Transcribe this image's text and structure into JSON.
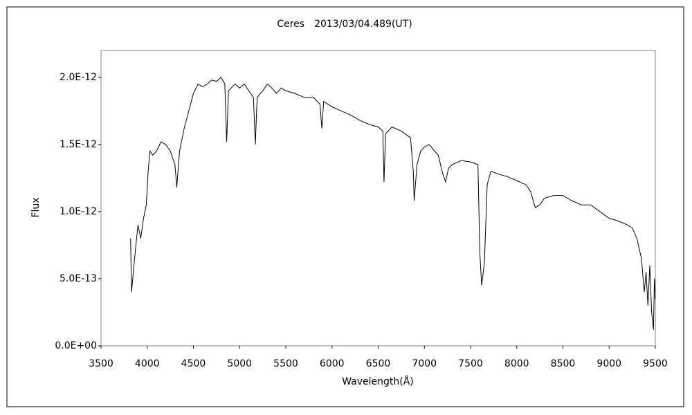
{
  "chart_data": {
    "type": "line",
    "title": "Ceres　2013/03/04.489(UT)",
    "x_label": "Wavelength(Å)",
    "y_label": "Flux",
    "xlim": [
      3500,
      9500
    ],
    "xticks": [
      3500,
      4000,
      4500,
      5000,
      5500,
      6000,
      6500,
      7000,
      7500,
      8000,
      8500,
      9000,
      9500
    ],
    "ylim": [
      0,
      2.2e-12
    ],
    "yticks": [
      {
        "value": 0,
        "label": "0.0E+00"
      },
      {
        "value": 5e-13,
        "label": "5.0E-13"
      },
      {
        "value": 1e-12,
        "label": "1.0E-12"
      },
      {
        "value": 1.5e-12,
        "label": "1.5E-12"
      },
      {
        "value": 2e-12,
        "label": "2.0E-12"
      }
    ],
    "grid": false,
    "series": [
      {
        "color": "#000000",
        "x": [
          3820,
          3830,
          3850,
          3870,
          3900,
          3930,
          3960,
          3990,
          4010,
          4030,
          4060,
          4100,
          4150,
          4200,
          4250,
          4300,
          4320,
          4350,
          4400,
          4450,
          4500,
          4550,
          4600,
          4650,
          4700,
          4750,
          4800,
          4840,
          4860,
          4880,
          4950,
          5000,
          5050,
          5100,
          5150,
          5170,
          5190,
          5250,
          5300,
          5350,
          5400,
          5450,
          5500,
          5600,
          5700,
          5800,
          5870,
          5890,
          5910,
          6000,
          6100,
          6200,
          6300,
          6400,
          6500,
          6550,
          6563,
          6580,
          6650,
          6750,
          6850,
          6880,
          6890,
          6920,
          6960,
          7000,
          7050,
          7100,
          7150,
          7200,
          7230,
          7260,
          7300,
          7400,
          7500,
          7580,
          7600,
          7620,
          7650,
          7680,
          7720,
          7800,
          7900,
          8000,
          8100,
          8150,
          8200,
          8250,
          8300,
          8400,
          8500,
          8600,
          8700,
          8800,
          8900,
          9000,
          9100,
          9200,
          9250,
          9300,
          9350,
          9380,
          9400,
          9420,
          9440,
          9460,
          9480,
          9490,
          9500
        ],
        "values": [
          8e-13,
          4e-13,
          5.5e-13,
          7e-13,
          9e-13,
          8e-13,
          9.5e-13,
          1.05e-12,
          1.3e-12,
          1.45e-12,
          1.42e-12,
          1.45e-12,
          1.52e-12,
          1.5e-12,
          1.45e-12,
          1.35e-12,
          1.18e-12,
          1.45e-12,
          1.62e-12,
          1.75e-12,
          1.88e-12,
          1.95e-12,
          1.93e-12,
          1.95e-12,
          1.98e-12,
          1.97e-12,
          2e-12,
          1.95e-12,
          1.52e-12,
          1.9e-12,
          1.95e-12,
          1.92e-12,
          1.95e-12,
          1.9e-12,
          1.85e-12,
          1.5e-12,
          1.85e-12,
          1.9e-12,
          1.95e-12,
          1.92e-12,
          1.88e-12,
          1.92e-12,
          1.9e-12,
          1.88e-12,
          1.85e-12,
          1.85e-12,
          1.8e-12,
          1.62e-12,
          1.82e-12,
          1.78e-12,
          1.75e-12,
          1.72e-12,
          1.68e-12,
          1.65e-12,
          1.63e-12,
          1.6e-12,
          1.22e-12,
          1.58e-12,
          1.63e-12,
          1.6e-12,
          1.55e-12,
          1.3e-12,
          1.08e-12,
          1.35e-12,
          1.45e-12,
          1.48e-12,
          1.5e-12,
          1.46e-12,
          1.42e-12,
          1.28e-12,
          1.22e-12,
          1.32e-12,
          1.35e-12,
          1.38e-12,
          1.37e-12,
          1.35e-12,
          7e-13,
          4.5e-13,
          6.2e-13,
          1.2e-12,
          1.3e-12,
          1.28e-12,
          1.26e-12,
          1.23e-12,
          1.2e-12,
          1.15e-12,
          1.03e-12,
          1.05e-12,
          1.1e-12,
          1.12e-12,
          1.12e-12,
          1.08e-12,
          1.05e-12,
          1.05e-12,
          1e-12,
          9.5e-13,
          9.3e-13,
          9e-13,
          8.8e-13,
          8e-13,
          6.5e-13,
          4e-13,
          5.5e-13,
          3e-13,
          6e-13,
          2.5e-13,
          1.2e-13,
          5e-13,
          3.5e-13
        ]
      }
    ]
  }
}
